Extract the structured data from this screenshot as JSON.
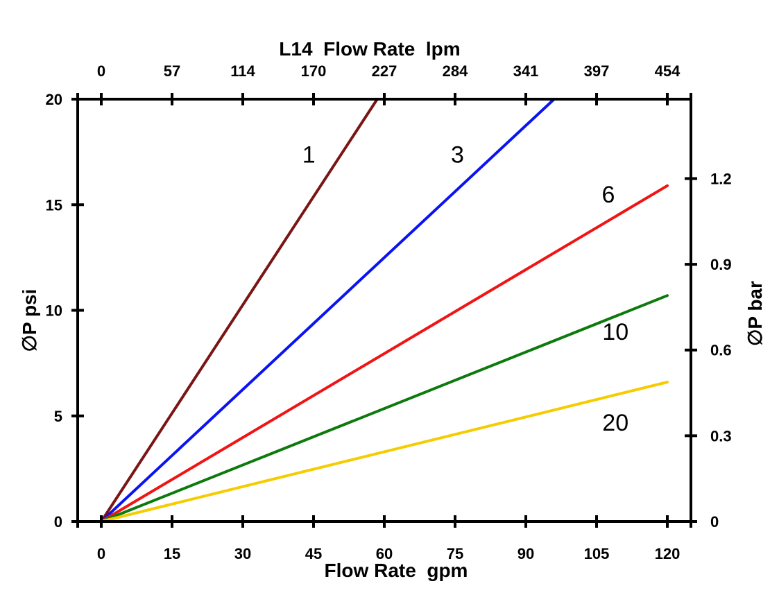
{
  "chart_data": {
    "type": "line",
    "title": "L14  Flow Rate  lpm",
    "xlabel": "Flow Rate  gpm",
    "ylabel": "∅P psi",
    "y2label": "∅P bar",
    "xlim": [
      -5,
      125
    ],
    "ylim": [
      0,
      20
    ],
    "x_ticks": [
      0,
      15,
      30,
      45,
      60,
      75,
      90,
      105,
      120
    ],
    "top_ticks": [
      "0",
      "57",
      "114",
      "170",
      "227",
      "284",
      "341",
      "397",
      "454"
    ],
    "y_ticks": [
      0,
      5,
      10,
      15,
      20
    ],
    "y2_ticks": [
      "0",
      "0.3",
      "0.6",
      "0.9",
      "1.2"
    ],
    "y2_tick_psi": [
      0,
      4.06,
      8.12,
      12.18,
      16.24
    ],
    "series": [
      {
        "name": "1",
        "color": "#7a1515",
        "x": [
          0,
          58.5
        ],
        "y": [
          0,
          20
        ]
      },
      {
        "name": "3",
        "color": "#0a14f0",
        "x": [
          0,
          96
        ],
        "y": [
          0,
          20
        ]
      },
      {
        "name": "6",
        "color": "#f01414",
        "x": [
          0,
          120
        ],
        "y": [
          0,
          15.9
        ]
      },
      {
        "name": "10",
        "color": "#0c7a0c",
        "x": [
          0,
          120
        ],
        "y": [
          0,
          10.7
        ]
      },
      {
        "name": "20",
        "color": "#f5cc00",
        "x": [
          0,
          120
        ],
        "y": [
          0,
          6.6
        ]
      }
    ],
    "series_labels": [
      {
        "text": "1",
        "x": 44,
        "y": 17
      },
      {
        "text": "3",
        "x": 75.5,
        "y": 17
      },
      {
        "text": "6",
        "x": 107.5,
        "y": 15.1
      },
      {
        "text": "10",
        "x": 109,
        "y": 8.6
      },
      {
        "text": "20",
        "x": 109,
        "y": 4.3
      }
    ]
  }
}
